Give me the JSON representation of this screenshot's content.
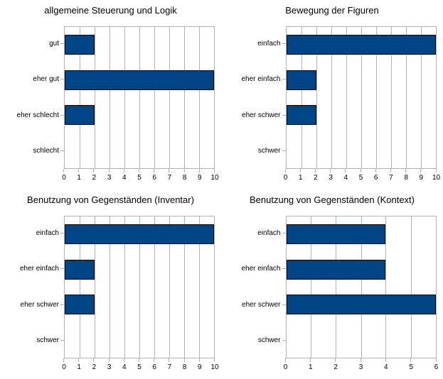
{
  "page": {
    "background": "#ffffff"
  },
  "colors": {
    "bar_fill": "#004586",
    "bar_border": "#000000",
    "grid": "#b3b3b3",
    "plot_border": "#b3b3b3",
    "text": "#000000"
  },
  "chart_data": [
    {
      "type": "bar",
      "orientation": "horizontal",
      "title": "allgemeine Steuerung und Logik",
      "categories": [
        "gut",
        "eher gut",
        "eher schlecht",
        "schlecht"
      ],
      "values": [
        2,
        10,
        2,
        0
      ],
      "xlabel": "",
      "ylabel": "",
      "xlim": [
        0,
        10
      ],
      "xticks": [
        0,
        1,
        2,
        3,
        4,
        5,
        6,
        7,
        8,
        9,
        10
      ],
      "grid": true,
      "legend": false
    },
    {
      "type": "bar",
      "orientation": "horizontal",
      "title": "Bewegung der Figuren",
      "categories": [
        "einfach",
        "eher einfach",
        "eher schwer",
        "schwer"
      ],
      "values": [
        10,
        2,
        2,
        0
      ],
      "xlabel": "",
      "ylabel": "",
      "xlim": [
        0,
        10
      ],
      "xticks": [
        0,
        1,
        2,
        3,
        4,
        5,
        6,
        7,
        8,
        9,
        10
      ],
      "grid": true,
      "legend": false
    },
    {
      "type": "bar",
      "orientation": "horizontal",
      "title": "Benutzung von Gegenständen (Inventar)",
      "categories": [
        "einfach",
        "eher einfach",
        "eher schwer",
        "schwer"
      ],
      "values": [
        10,
        2,
        2,
        0
      ],
      "xlabel": "",
      "ylabel": "",
      "xlim": [
        0,
        10
      ],
      "xticks": [
        0,
        1,
        2,
        3,
        4,
        5,
        6,
        7,
        8,
        9,
        10
      ],
      "grid": true,
      "legend": false
    },
    {
      "type": "bar",
      "orientation": "horizontal",
      "title": "Benutzung von Gegenständen (Kontext)",
      "categories": [
        "einfach",
        "eher einfach",
        "eher schwer",
        "schwer"
      ],
      "values": [
        4,
        4,
        6,
        0
      ],
      "xlabel": "",
      "ylabel": "",
      "xlim": [
        0,
        6
      ],
      "xticks": [
        0,
        1,
        2,
        3,
        4,
        5,
        6
      ],
      "grid": true,
      "legend": false
    }
  ]
}
